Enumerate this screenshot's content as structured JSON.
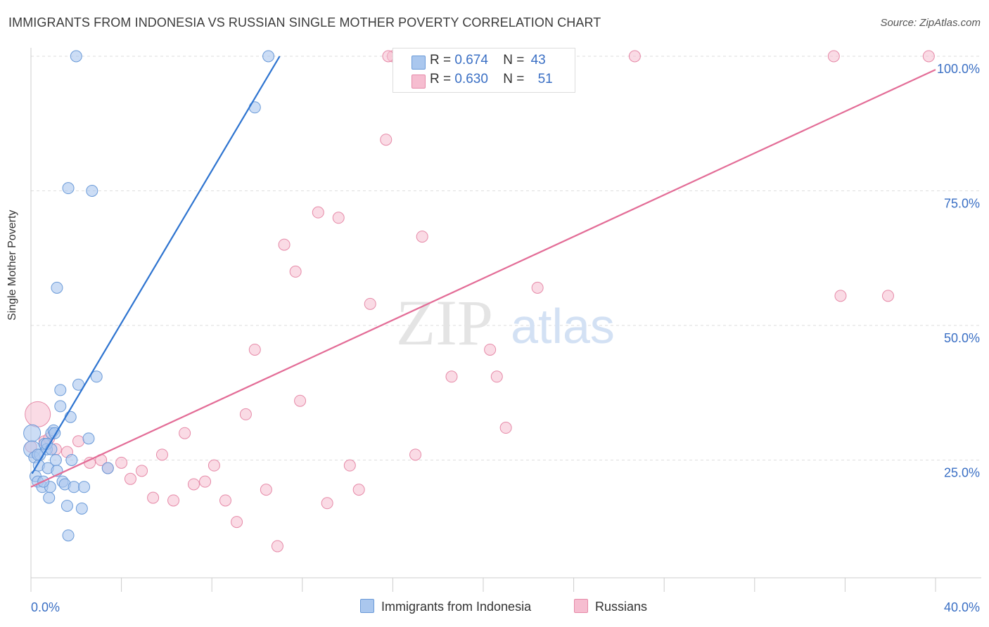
{
  "title": "IMMIGRANTS FROM INDONESIA VS RUSSIAN SINGLE MOTHER POVERTY CORRELATION CHART",
  "source": "Source: ZipAtlas.com",
  "watermark": {
    "zip": "ZIP",
    "atlas": "atlas"
  },
  "colors": {
    "blue_fill": "#aac7ee",
    "blue_stroke": "#6a9ad8",
    "blue_line": "#2e74d0",
    "pink_fill": "#f6bdd0",
    "pink_stroke": "#e68aa8",
    "pink_line": "#e36d97",
    "axis_text": "#3a6fc4",
    "grid": "#dddddd"
  },
  "legend_top": {
    "rows": [
      {
        "r_label": "R =",
        "r_value": "0.674",
        "n_label": "N =",
        "n_value": "43"
      },
      {
        "r_label": "R =",
        "r_value": "0.630",
        "n_label": "N =",
        "n_value": "51"
      }
    ]
  },
  "legend_bottom": {
    "series1": "Immigrants from Indonesia",
    "series2": "Russians"
  },
  "chart_data": {
    "type": "scatter",
    "title": "IMMIGRANTS FROM INDONESIA VS RUSSIAN SINGLE MOTHER POVERTY CORRELATION CHART",
    "xlabel": "",
    "ylabel": "Single Mother Poverty",
    "xlim": [
      0,
      40
    ],
    "ylim": [
      0,
      100
    ],
    "x_tick_labels": [
      "0.0%",
      "40.0%"
    ],
    "y_tick_labels": [
      "25.0%",
      "50.0%",
      "75.0%",
      "100.0%"
    ],
    "y_ticks": [
      25,
      50,
      75,
      100
    ],
    "grid": true,
    "legend_position": "top-center",
    "series": [
      {
        "name": "Immigrants from Indonesia",
        "color": "#aac7ee",
        "R": 0.674,
        "N": 43,
        "trend": {
          "x": [
            0.05,
            11.0
          ],
          "y": [
            22.5,
            100
          ]
        },
        "points": [
          [
            0.05,
            30
          ],
          [
            0.05,
            27
          ],
          [
            0.15,
            25.5
          ],
          [
            0.2,
            22
          ],
          [
            0.3,
            21
          ],
          [
            0.35,
            24
          ],
          [
            0.4,
            26
          ],
          [
            0.5,
            20
          ],
          [
            0.6,
            28
          ],
          [
            0.7,
            27
          ],
          [
            0.75,
            23.5
          ],
          [
            0.8,
            18
          ],
          [
            0.85,
            20
          ],
          [
            0.9,
            30
          ],
          [
            1.0,
            30.5
          ],
          [
            1.05,
            30
          ],
          [
            1.1,
            25
          ],
          [
            1.15,
            23
          ],
          [
            1.3,
            35
          ],
          [
            1.3,
            38
          ],
          [
            1.4,
            21
          ],
          [
            1.5,
            20.5
          ],
          [
            1.6,
            16.5
          ],
          [
            1.65,
            11
          ],
          [
            1.75,
            33
          ],
          [
            1.8,
            25
          ],
          [
            1.9,
            20
          ],
          [
            2.1,
            39
          ],
          [
            2.25,
            16
          ],
          [
            2.35,
            20
          ],
          [
            2.55,
            29
          ],
          [
            2.9,
            40.5
          ],
          [
            3.4,
            23.5
          ],
          [
            1.15,
            57
          ],
          [
            1.65,
            75.5
          ],
          [
            2.7,
            75
          ],
          [
            2.0,
            100
          ],
          [
            10.5,
            100
          ],
          [
            9.9,
            90.5
          ],
          [
            0.7,
            28
          ],
          [
            0.9,
            27
          ],
          [
            0.55,
            21
          ],
          [
            0.3,
            26
          ]
        ]
      },
      {
        "name": "Russians",
        "color": "#f6bdd0",
        "R": 0.63,
        "N": 51,
        "trend": {
          "x": [
            0.0,
            40.0
          ],
          "y": [
            20,
            97.5
          ]
        },
        "points": [
          [
            0.3,
            33.5
          ],
          [
            0.6,
            28.5
          ],
          [
            1.6,
            26.5
          ],
          [
            2.1,
            28.5
          ],
          [
            2.6,
            24.5
          ],
          [
            3.1,
            25
          ],
          [
            3.4,
            23.5
          ],
          [
            4.0,
            24.5
          ],
          [
            4.4,
            21.5
          ],
          [
            4.9,
            23
          ],
          [
            5.4,
            18
          ],
          [
            5.8,
            26
          ],
          [
            6.3,
            17.5
          ],
          [
            6.8,
            30
          ],
          [
            7.2,
            20.5
          ],
          [
            7.7,
            21
          ],
          [
            8.1,
            24
          ],
          [
            8.6,
            17.5
          ],
          [
            9.1,
            13.5
          ],
          [
            9.5,
            33.5
          ],
          [
            9.9,
            45.5
          ],
          [
            10.4,
            19.5
          ],
          [
            10.9,
            9
          ],
          [
            11.2,
            65
          ],
          [
            11.9,
            36
          ],
          [
            11.7,
            60
          ],
          [
            12.7,
            71
          ],
          [
            13.1,
            17
          ],
          [
            13.6,
            70
          ],
          [
            14.1,
            24
          ],
          [
            14.5,
            19.5
          ],
          [
            15.0,
            54
          ],
          [
            15.7,
            84.5
          ],
          [
            17.0,
            26
          ],
          [
            17.3,
            66.5
          ],
          [
            18.6,
            40.5
          ],
          [
            20.3,
            45.5
          ],
          [
            20.6,
            40.5
          ],
          [
            21.0,
            31
          ],
          [
            22.4,
            57
          ],
          [
            16.0,
            100
          ],
          [
            15.8,
            100
          ],
          [
            22.0,
            100
          ],
          [
            26.7,
            100
          ],
          [
            35.5,
            100
          ],
          [
            39.7,
            100
          ],
          [
            35.8,
            55.5
          ],
          [
            37.9,
            55.5
          ],
          [
            0.0,
            27.5
          ],
          [
            1.1,
            27
          ],
          [
            0.8,
            29
          ]
        ]
      }
    ]
  }
}
